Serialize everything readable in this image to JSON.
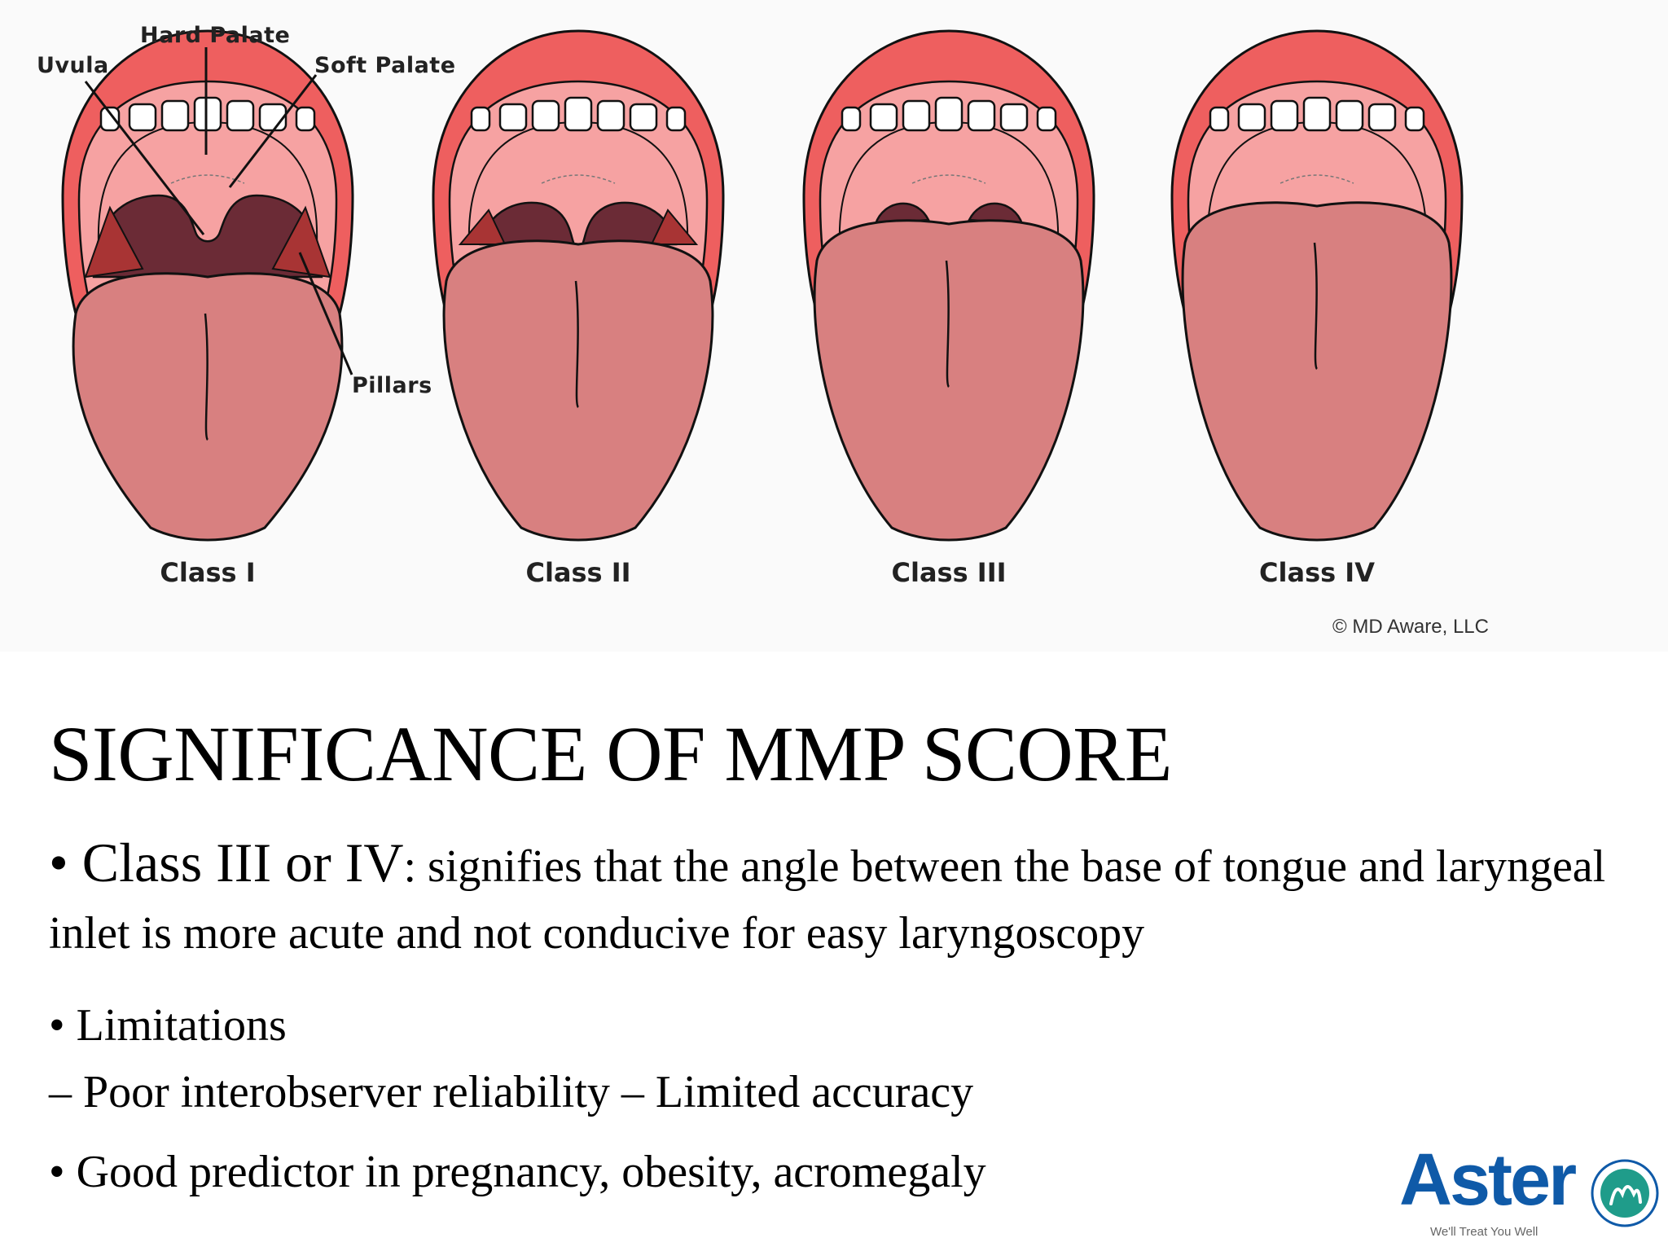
{
  "figure": {
    "labels": {
      "hard_palate": "Hard Palate",
      "uvula": "Uvula",
      "soft_palate": "Soft Palate",
      "pillars": "Pillars"
    },
    "classes": [
      "Class I",
      "Class II",
      "Class III",
      "Class IV"
    ],
    "credit": "© MD Aware, LLC",
    "colors": {
      "lip": "#ee5f5f",
      "lip_dark": "#d94747",
      "mouth_interior": "#f6a2a2",
      "tongue": "#d88080",
      "pharynx": "#6b2b36",
      "pillar": "#a83434",
      "teeth": "#ffffff"
    }
  },
  "slide": {
    "title": "SIGNIFICANCE OF MMP SCORE",
    "bullet1_lead": "• Class III or IV",
    "bullet1_rest": ": signifies that the angle between the base of tongue and laryngeal inlet is more acute and not conducive for easy laryngoscopy",
    "bullet2": "• Limitations",
    "bullet2_sub": "– Poor interobserver reliability – Limited accuracy",
    "bullet3": "• Good predictor in pregnancy, obesity, acromegaly"
  },
  "logo": {
    "name": "Aster",
    "tagline": "We'll Treat You Well",
    "brand_color": "#0f5aa8"
  }
}
